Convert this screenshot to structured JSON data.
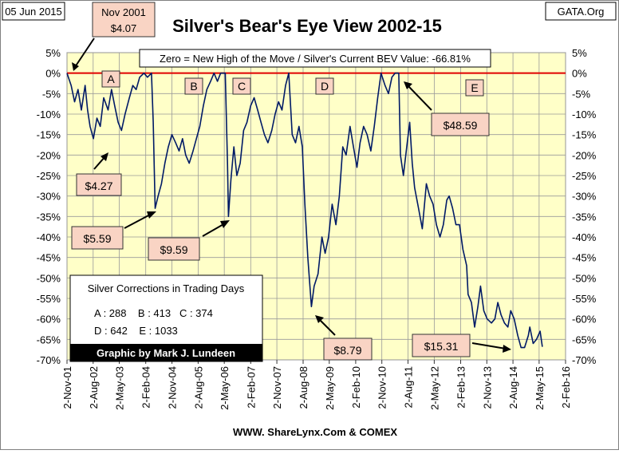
{
  "header": {
    "date": "05 Jun 2015",
    "title": "Silver's Bear's Eye View 2002-15",
    "source": "GATA.Org",
    "footer": "WWW. ShareLynx.Com & COMEX",
    "credit": "Graphic by Mark J. Lundeen"
  },
  "chart_data": {
    "type": "line",
    "title": "Silver's Bear's Eye View 2002-15",
    "subtitle": "Zero = New High of the Move / Silver's Current BEV Value: -66.81%",
    "x_range": [
      "2001-11-02",
      "2016-02-02"
    ],
    "ylim": [
      -70,
      5
    ],
    "y_ticks": [
      5,
      0,
      -5,
      -10,
      -15,
      -20,
      -25,
      -30,
      -35,
      -40,
      -45,
      -50,
      -55,
      -60,
      -65,
      -70
    ],
    "y_tick_labels": [
      "5%",
      "0%",
      "-5%",
      "-10%",
      "-15%",
      "-20%",
      "-25%",
      "-30%",
      "-35%",
      "-40%",
      "-45%",
      "-50%",
      "-55%",
      "-60%",
      "-65%",
      "-70%"
    ],
    "x_ticks": [
      "2001-11-02",
      "2002-08-02",
      "2003-05-02",
      "2004-02-02",
      "2004-11-02",
      "2005-08-02",
      "2006-05-02",
      "2007-02-02",
      "2007-11-02",
      "2008-08-02",
      "2009-05-02",
      "2010-02-02",
      "2010-11-02",
      "2011-08-02",
      "2012-05-02",
      "2013-02-02",
      "2013-11-02",
      "2014-08-02",
      "2015-05-02",
      "2016-02-02"
    ],
    "x_tick_labels": [
      "2-Nov-01",
      "2-Aug-02",
      "2-May-03",
      "2-Feb-04",
      "2-Nov-04",
      "2-Aug-05",
      "2-May-06",
      "2-Feb-07",
      "2-Nov-07",
      "2-Aug-08",
      "2-May-09",
      "2-Feb-10",
      "2-Nov-10",
      "2-Aug-11",
      "2-May-12",
      "2-Feb-13",
      "2-Nov-13",
      "2-Aug-14",
      "2-May-15",
      "2-Feb-16"
    ],
    "grid": true,
    "zero_line_color": "#e00000",
    "line_color": "#001a66",
    "plot_background": "#ffffc8",
    "series": [
      {
        "points": [
          [
            "2001-11-02",
            0
          ],
          [
            "2001-12-15",
            -3
          ],
          [
            "2002-01-20",
            -7
          ],
          [
            "2002-02-25",
            -4
          ],
          [
            "2002-04-01",
            -9
          ],
          [
            "2002-05-10",
            -3
          ],
          [
            "2002-06-05",
            -9
          ],
          [
            "2002-07-01",
            -13
          ],
          [
            "2002-08-05",
            -16
          ],
          [
            "2002-09-10",
            -11
          ],
          [
            "2002-10-15",
            -13
          ],
          [
            "2002-11-20",
            -6
          ],
          [
            "2003-01-05",
            -9
          ],
          [
            "2003-02-10",
            -4
          ],
          [
            "2003-03-15",
            -8
          ],
          [
            "2003-04-20",
            -12
          ],
          [
            "2003-05-25",
            -14
          ],
          [
            "2003-07-01",
            -10
          ],
          [
            "2003-08-15",
            -6
          ],
          [
            "2003-09-20",
            -3
          ],
          [
            "2003-10-25",
            -4
          ],
          [
            "2003-12-01",
            -1
          ],
          [
            "2004-01-15",
            0
          ],
          [
            "2004-02-20",
            -1
          ],
          [
            "2004-04-02",
            0
          ],
          [
            "2004-04-20",
            -12
          ],
          [
            "2004-05-10",
            -33
          ],
          [
            "2004-06-10",
            -30
          ],
          [
            "2004-07-15",
            -27
          ],
          [
            "2004-08-20",
            -22
          ],
          [
            "2004-09-25",
            -18
          ],
          [
            "2004-11-01",
            -15
          ],
          [
            "2004-12-10",
            -17
          ],
          [
            "2005-01-15",
            -19
          ],
          [
            "2005-02-20",
            -16
          ],
          [
            "2005-03-25",
            -20
          ],
          [
            "2005-05-01",
            -22
          ],
          [
            "2005-06-10",
            -19
          ],
          [
            "2005-07-15",
            -16
          ],
          [
            "2005-08-20",
            -13
          ],
          [
            "2005-09-25",
            -8
          ],
          [
            "2005-11-01",
            -4
          ],
          [
            "2005-12-10",
            -2
          ],
          [
            "2006-01-15",
            0
          ],
          [
            "2006-02-20",
            -2
          ],
          [
            "2006-03-25",
            0
          ],
          [
            "2006-05-12",
            0
          ],
          [
            "2006-06-05",
            -22
          ],
          [
            "2006-06-15",
            -35
          ],
          [
            "2006-07-10",
            -26
          ],
          [
            "2006-08-10",
            -18
          ],
          [
            "2006-09-10",
            -25
          ],
          [
            "2006-10-15",
            -22
          ],
          [
            "2006-11-20",
            -14
          ],
          [
            "2006-12-25",
            -12
          ],
          [
            "2007-02-01",
            -8
          ],
          [
            "2007-03-10",
            -6
          ],
          [
            "2007-04-15",
            -9
          ],
          [
            "2007-05-20",
            -12
          ],
          [
            "2007-06-25",
            -15
          ],
          [
            "2007-08-01",
            -17
          ],
          [
            "2007-09-10",
            -14
          ],
          [
            "2007-10-15",
            -10
          ],
          [
            "2007-11-20",
            -7
          ],
          [
            "2007-12-25",
            -9
          ],
          [
            "2008-02-01",
            -3
          ],
          [
            "2008-03-05",
            0
          ],
          [
            "2008-04-10",
            -15
          ],
          [
            "2008-05-15",
            -17
          ],
          [
            "2008-06-20",
            -13
          ],
          [
            "2008-07-25",
            -18
          ],
          [
            "2008-08-20",
            -32
          ],
          [
            "2008-09-20",
            -45
          ],
          [
            "2008-10-28",
            -57
          ],
          [
            "2008-11-25",
            -52
          ],
          [
            "2009-01-05",
            -49
          ],
          [
            "2009-02-15",
            -40
          ],
          [
            "2009-03-20",
            -44
          ],
          [
            "2009-04-25",
            -40
          ],
          [
            "2009-06-01",
            -32
          ],
          [
            "2009-07-10",
            -37
          ],
          [
            "2009-08-15",
            -30
          ],
          [
            "2009-09-20",
            -18
          ],
          [
            "2009-10-25",
            -20
          ],
          [
            "2009-12-05",
            -13
          ],
          [
            "2010-01-10",
            -18
          ],
          [
            "2010-02-15",
            -23
          ],
          [
            "2010-03-20",
            -17
          ],
          [
            "2010-04-25",
            -13
          ],
          [
            "2010-06-01",
            -15
          ],
          [
            "2010-07-10",
            -19
          ],
          [
            "2010-08-15",
            -13
          ],
          [
            "2010-09-20",
            -6
          ],
          [
            "2010-10-25",
            0
          ],
          [
            "2010-12-05",
            -3
          ],
          [
            "2011-01-10",
            -5
          ],
          [
            "2011-02-15",
            -1
          ],
          [
            "2011-03-20",
            0
          ],
          [
            "2011-04-28",
            0
          ],
          [
            "2011-05-15",
            -20
          ],
          [
            "2011-06-15",
            -25
          ],
          [
            "2011-07-20",
            -18
          ],
          [
            "2011-08-20",
            -12
          ],
          [
            "2011-09-15",
            -22
          ],
          [
            "2011-10-10",
            -28
          ],
          [
            "2011-11-20",
            -33
          ],
          [
            "2011-12-29",
            -38
          ],
          [
            "2012-02-10",
            -27
          ],
          [
            "2012-03-15",
            -30
          ],
          [
            "2012-04-20",
            -32
          ],
          [
            "2012-05-25",
            -37
          ],
          [
            "2012-07-01",
            -40
          ],
          [
            "2012-08-05",
            -37
          ],
          [
            "2012-09-10",
            -31
          ],
          [
            "2012-10-05",
            -30
          ],
          [
            "2012-11-10",
            -33
          ],
          [
            "2012-12-15",
            -37
          ],
          [
            "2013-01-20",
            -37
          ],
          [
            "2013-02-25",
            -43
          ],
          [
            "2013-04-05",
            -47
          ],
          [
            "2013-04-20",
            -54
          ],
          [
            "2013-05-25",
            -56
          ],
          [
            "2013-06-28",
            -62
          ],
          [
            "2013-08-01",
            -57
          ],
          [
            "2013-08-28",
            -52
          ],
          [
            "2013-10-01",
            -58
          ],
          [
            "2013-11-05",
            -60
          ],
          [
            "2013-12-20",
            -61
          ],
          [
            "2014-01-25",
            -60
          ],
          [
            "2014-02-25",
            -56
          ],
          [
            "2014-03-30",
            -59
          ],
          [
            "2014-05-05",
            -61
          ],
          [
            "2014-06-10",
            -62
          ],
          [
            "2014-07-10",
            -58
          ],
          [
            "2014-08-15",
            -60
          ],
          [
            "2014-09-20",
            -64
          ],
          [
            "2014-10-25",
            -67
          ],
          [
            "2014-12-01",
            -67
          ],
          [
            "2015-01-10",
            -64
          ],
          [
            "2015-01-25",
            -62
          ],
          [
            "2015-03-01",
            -66
          ],
          [
            "2015-04-05",
            -65
          ],
          [
            "2015-05-12",
            -63
          ],
          [
            "2015-06-05",
            -66.81
          ]
        ]
      }
    ],
    "annotations": [
      {
        "text": "Nov 2001 $4.07",
        "line1": "Nov 2001",
        "line2": "$4.07"
      },
      {
        "text": "$4.27"
      },
      {
        "text": "$5.59"
      },
      {
        "text": "$9.59"
      },
      {
        "text": "$8.79"
      },
      {
        "text": "$48.59"
      },
      {
        "text": "$15.31"
      }
    ],
    "markers": [
      "A",
      "B",
      "C",
      "D",
      "E"
    ],
    "corrections": {
      "title": "Silver Corrections in Trading Days",
      "row1": "A : 288    B : 413   C : 374",
      "row2": "D : 642    E : 1033"
    }
  }
}
